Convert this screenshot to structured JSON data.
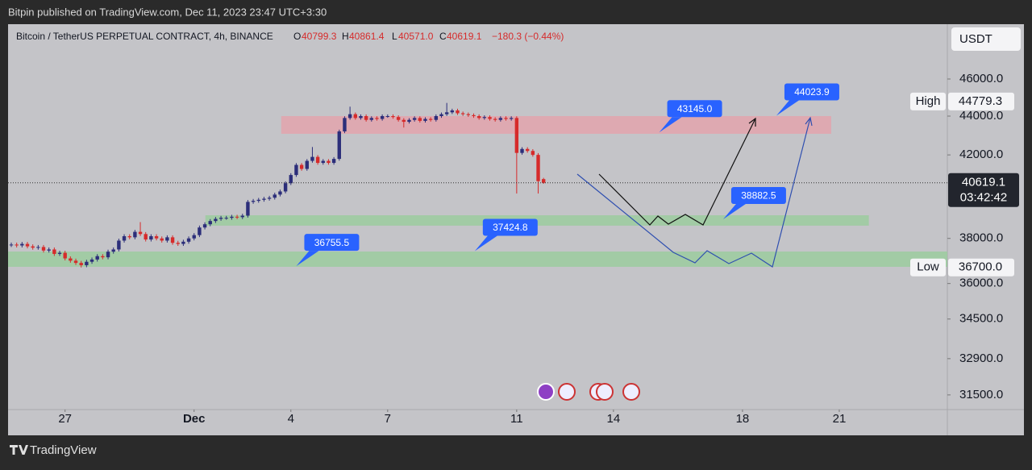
{
  "header": {
    "text": "Bitpin published on TradingView.com, Dec 11, 2023 23:47 UTC+3:30"
  },
  "chart_data": {
    "type": "candlestick",
    "title": "Bitcoin / TetherUS PERPETUAL CONTRACT, 4h, BINANCE",
    "legend": {
      "o_label": "O",
      "o": 40799.3,
      "h_label": "H",
      "h": 40861.4,
      "l_label": "L",
      "l": {
        "value": 40571,
        "label": "40571.0"
      },
      "c_label": "C",
      "c": 40619.1,
      "change": "−180.3 (−0.44%)"
    },
    "currency": "USDT",
    "log_scale": true,
    "ylim": [
      30953,
      49124
    ],
    "yticks": [
      {
        "value": 46000,
        "label": "46000.0"
      },
      {
        "value": 44000,
        "label": "44000.0"
      },
      {
        "value": 42000,
        "label": "42000.0"
      },
      {
        "value": 38000,
        "label": "38000.0"
      },
      {
        "value": 36000,
        "label": "36000.0"
      },
      {
        "value": 34500,
        "label": "34500.0"
      },
      {
        "value": 32900,
        "label": "32900.0"
      },
      {
        "value": 31500,
        "label": "31500.0"
      }
    ],
    "xlim": [
      -0.6,
      174.1
    ],
    "xticks": [
      {
        "value": 10,
        "label": "27"
      },
      {
        "value": 34,
        "label": "Dec"
      },
      {
        "value": 52,
        "label": "4"
      },
      {
        "value": 70,
        "label": "7"
      },
      {
        "value": 94,
        "label": "11"
      },
      {
        "value": 112,
        "label": "14"
      },
      {
        "value": 136,
        "label": "18"
      },
      {
        "value": 154,
        "label": "21"
      }
    ],
    "up_color": "#2c2e7a",
    "down_color": "#d62b2b",
    "open": [
      37700,
      37720,
      37680,
      37750,
      37640,
      37580,
      37610,
      37450,
      37500,
      37300,
      37350,
      37100,
      37000,
      36900,
      36800,
      36950,
      37050,
      37200,
      37150,
      37400,
      37500,
      37900,
      38100,
      38050,
      38300,
      38200,
      37950,
      38100,
      38000,
      37900,
      38050,
      37800,
      37750,
      37850,
      38000,
      38150,
      38500,
      38650,
      38800,
      38900,
      38950,
      38950,
      39000,
      38980,
      39050,
      39700,
      39750,
      39800,
      39850,
      39900,
      40050,
      40200,
      40600,
      41000,
      41500,
      41300,
      41700,
      41900,
      41600,
      41700,
      41600,
      41800,
      43200,
      43900,
      44100,
      43900,
      44000,
      43800,
      43900,
      43850,
      44000,
      44000,
      43950,
      43800,
      43700,
      43800,
      43900,
      43750,
      43850,
      43800,
      44000,
      44100,
      44200,
      44300,
      44150,
      44100,
      44050,
      44000,
      43900,
      43950,
      43850,
      43800,
      43900,
      43850,
      43900,
      42100,
      42300,
      42200,
      42000,
      40799.3
    ],
    "high": [
      37810,
      37810,
      37840,
      37840,
      37730,
      37700,
      37700,
      37590,
      37590,
      37440,
      37440,
      37190,
      37090,
      36990,
      37040,
      37140,
      37290,
      37290,
      37490,
      37590,
      37990,
      38190,
      38190,
      38390,
      38750,
      38290,
      38190,
      38190,
      38090,
      38140,
      38140,
      37890,
      37940,
      38090,
      38240,
      38590,
      38740,
      38890,
      38990,
      39040,
      39040,
      39090,
      39090,
      39140,
      39790,
      39840,
      39890,
      39940,
      39990,
      40140,
      40290,
      40690,
      41090,
      41590,
      41590,
      41790,
      42400,
      41990,
      41790,
      41790,
      41890,
      43290,
      43990,
      44500,
      44190,
      44090,
      44090,
      43990,
      43990,
      44090,
      44090,
      44090,
      44040,
      43890,
      43890,
      43990,
      43990,
      43940,
      43940,
      44090,
      44190,
      44700,
      44390,
      44390,
      44240,
      44190,
      44140,
      44090,
      44040,
      44040,
      43940,
      43990,
      43990,
      43990,
      43990,
      42390,
      42390,
      42290,
      42090,
      40861.4
    ],
    "low": [
      37610,
      37590,
      37590,
      37550,
      37490,
      37490,
      37360,
      37360,
      37210,
      37210,
      37010,
      36910,
      36810,
      36700,
      36710,
      36860,
      36960,
      37060,
      37060,
      37310,
      37410,
      37810,
      37960,
      37960,
      38110,
      37860,
      37860,
      37910,
      37810,
      37810,
      37710,
      37660,
      37660,
      37760,
      37910,
      38060,
      38410,
      38560,
      38710,
      38810,
      38860,
      38860,
      38890,
      38890,
      38960,
      39610,
      39660,
      39710,
      39760,
      39810,
      39960,
      40110,
      40510,
      40910,
      41210,
      41210,
      41610,
      41510,
      41510,
      41510,
      41510,
      41710,
      43110,
      43810,
      43810,
      43810,
      43710,
      43710,
      43760,
      43760,
      43910,
      43860,
      43710,
      43400,
      43610,
      43710,
      43660,
      43660,
      43710,
      43710,
      43910,
      44010,
      44110,
      44060,
      44010,
      43960,
      43910,
      43810,
      43810,
      43760,
      43710,
      43710,
      43760,
      43760,
      40100,
      42010,
      42110,
      41910,
      40100,
      40571
    ],
    "close": [
      37720,
      37680,
      37750,
      37640,
      37580,
      37610,
      37450,
      37500,
      37300,
      37350,
      37100,
      37000,
      36900,
      36800,
      36950,
      37050,
      37200,
      37150,
      37400,
      37500,
      37900,
      38100,
      38050,
      38300,
      38200,
      37950,
      38100,
      38000,
      37900,
      38050,
      37800,
      37750,
      37850,
      38000,
      38150,
      38500,
      38650,
      38800,
      38900,
      38950,
      38950,
      39000,
      38980,
      39050,
      39700,
      39750,
      39800,
      39850,
      39900,
      40050,
      40200,
      40600,
      41000,
      41500,
      41300,
      41700,
      41900,
      41600,
      41700,
      41600,
      41800,
      43200,
      43900,
      44100,
      43900,
      44000,
      43800,
      43900,
      43850,
      44000,
      44000,
      43950,
      43800,
      43700,
      43800,
      43900,
      43750,
      43850,
      43800,
      44000,
      44100,
      44200,
      44300,
      44150,
      44100,
      44050,
      44000,
      43900,
      43950,
      43850,
      43800,
      43900,
      43850,
      43900,
      42100,
      42300,
      42200,
      42000,
      40700,
      40619.1
    ],
    "zones": [
      {
        "from": 50.2,
        "to": 152.5,
        "top": 44000,
        "bottom": 43075,
        "color": "#e3a5ad"
      },
      {
        "from": 36.1,
        "to": 159.5,
        "top": 39070,
        "bottom": 38585,
        "color": "#9ccc9f"
      },
      {
        "from": -0.6,
        "to": 174.1,
        "top": 37407,
        "bottom": 36727,
        "color": "#9ccc9f"
      }
    ],
    "annotations": [
      {
        "x": 53,
        "price": 36755.5
      },
      {
        "x": 86.2,
        "price": 37424.8
      },
      {
        "x": 120.5,
        "price": {
          "value": 43145,
          "label": "43145.0"
        }
      },
      {
        "x": 142.3,
        "price": 44023.9
      },
      {
        "x": 132.4,
        "price": 38882.5
      }
    ],
    "high_marker": {
      "label": "High",
      "value": 44779.3
    },
    "low_marker": {
      "label": "Low",
      "value": {
        "value": 36700,
        "label": "36700.0"
      }
    },
    "last_price": 40619.1,
    "countdown": "03:42:42"
  },
  "footer": {
    "brand": "TradingView"
  }
}
